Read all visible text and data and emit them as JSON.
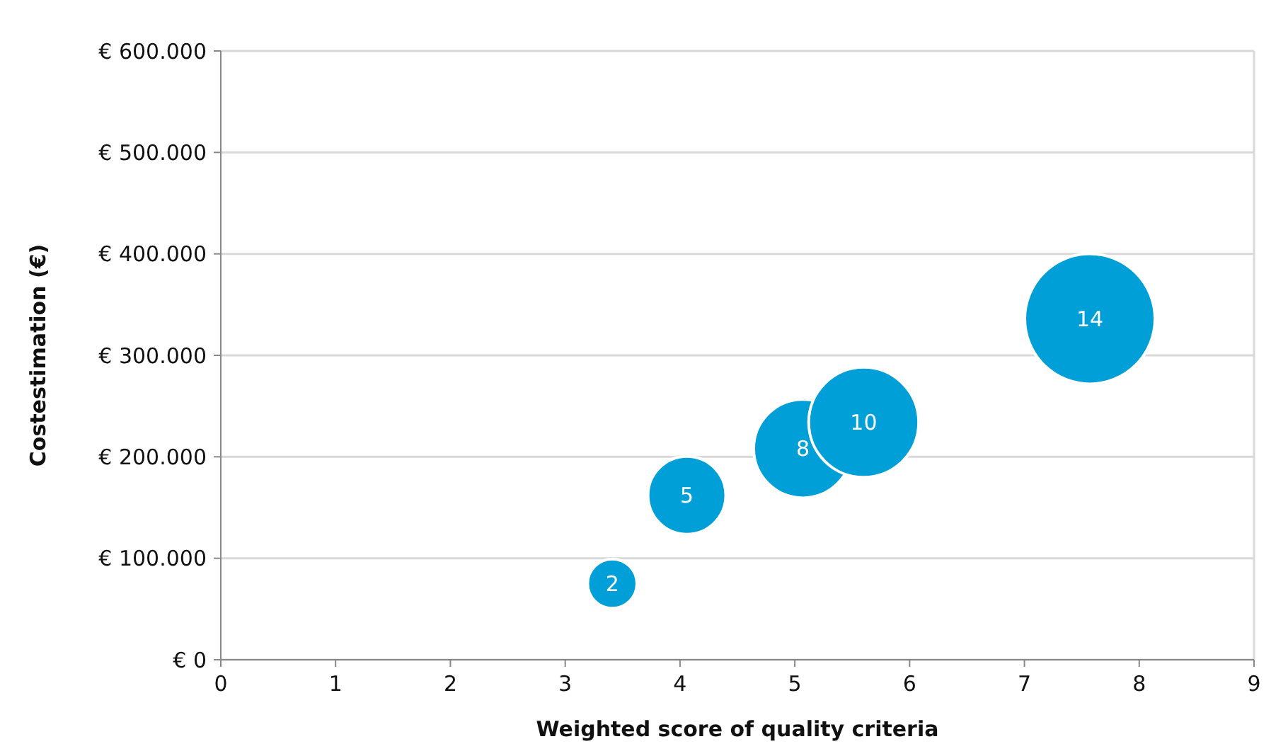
{
  "chart_data": {
    "type": "bubble",
    "xlabel": "Weighted score of quality criteria",
    "ylabel": "Costestimation (€)",
    "x": [
      3.41,
      4.06,
      5.07,
      5.6,
      7.57
    ],
    "values": [
      75000,
      162000,
      208000,
      234000,
      336000
    ],
    "sizes": [
      0.143,
      0.357,
      0.571,
      0.714,
      1
    ],
    "annotations": [
      {
        "text": "2",
        "x": 3.41,
        "y": 75000
      },
      {
        "text": "5",
        "x": 4.06,
        "y": 162000
      },
      {
        "text": "8",
        "x": 5.07,
        "y": 208000
      },
      {
        "text": "10",
        "x": 5.6,
        "y": 234000
      },
      {
        "text": "14",
        "x": 7.57,
        "y": 336000
      }
    ],
    "color": "#009fd8",
    "xlim": [
      0,
      9
    ],
    "xticks": [
      0,
      1,
      2,
      3,
      4,
      5,
      6,
      7,
      8,
      9
    ],
    "ylim": [
      0,
      600000
    ],
    "yticks": [
      {
        "value": 0,
        "label": "€ 0"
      },
      {
        "value": 100000,
        "label": "€ 100.000"
      },
      {
        "value": 200000,
        "label": "€ 200.000"
      },
      {
        "value": 300000,
        "label": "€ 300.000"
      },
      {
        "value": 400000,
        "label": "€ 400.000"
      },
      {
        "value": 500000,
        "label": "€ 500.000"
      },
      {
        "value": 600000,
        "label": "€ 600.000"
      }
    ],
    "grid": "y"
  }
}
